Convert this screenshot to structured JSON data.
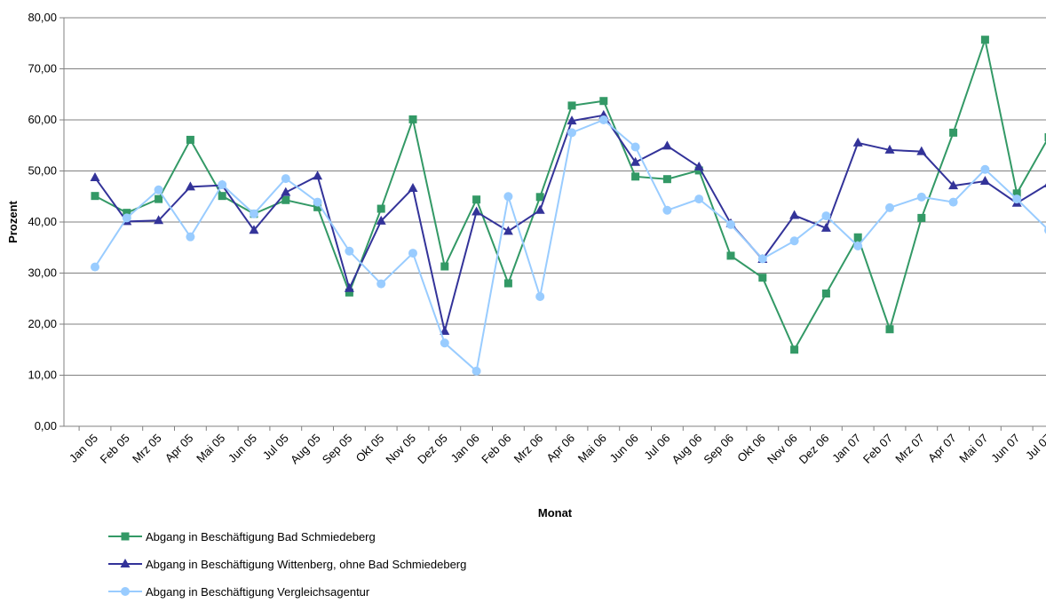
{
  "chart_data": {
    "type": "line",
    "x_label": "Monat",
    "y_label": "Prozent",
    "categories": [
      "Jan 05",
      "Feb 05",
      "Mrz 05",
      "Apr 05",
      "Mai 05",
      "Jun 05",
      "Jul 05",
      "Aug 05",
      "Sep 05",
      "Okt 05",
      "Nov 05",
      "Dez 05",
      "Jan 06",
      "Feb 06",
      "Mrz 06",
      "Apr 06",
      "Mai 06",
      "Jun 06",
      "Jul 06",
      "Aug 06",
      "Sep 06",
      "Okt 06",
      "Nov 06",
      "Dez 06",
      "Jan 07",
      "Feb 07",
      "Mrz 07",
      "Apr 07",
      "Mai 07",
      "Jun 07",
      "Jul 07"
    ],
    "series": [
      {
        "name": "Abgang in Beschäftigung Bad Schmiedeberg",
        "color": "#339966",
        "marker": "square",
        "values": [
          45.1,
          41.8,
          44.5,
          56.1,
          45.1,
          41.6,
          44.3,
          42.9,
          26.2,
          42.6,
          60.1,
          31.3,
          44.4,
          28.0,
          44.9,
          62.8,
          63.7,
          48.9,
          48.4,
          50.1,
          33.4,
          29.1,
          15.0,
          26.0,
          37.0,
          19.0,
          40.8,
          57.5,
          75.7,
          45.6,
          56.6
        ]
      },
      {
        "name": "Abgang in Beschäftigung Wittenberg, ohne Bad Schmiedeberg",
        "color": "#333399",
        "marker": "triangle",
        "values": [
          48.7,
          40.1,
          40.3,
          46.9,
          47.2,
          38.4,
          45.8,
          49.0,
          27.0,
          40.2,
          46.6,
          18.6,
          42.0,
          38.2,
          42.3,
          59.8,
          60.9,
          51.7,
          54.9,
          50.8,
          39.7,
          32.7,
          41.3,
          38.8,
          55.5,
          54.1,
          53.8,
          47.1,
          48.0,
          43.7,
          47.5
        ]
      },
      {
        "name": "Abgang in Beschäftigung Vergleichsagentur",
        "color": "#99ccff",
        "marker": "circle",
        "values": [
          31.2,
          40.8,
          46.3,
          37.1,
          47.3,
          41.6,
          48.5,
          43.9,
          34.3,
          27.9,
          33.9,
          16.3,
          10.8,
          45.0,
          25.4,
          57.5,
          60.0,
          54.7,
          42.3,
          44.5,
          39.5,
          32.8,
          36.3,
          41.2,
          35.3,
          42.8,
          44.9,
          43.9,
          50.3,
          44.5,
          38.4
        ]
      }
    ],
    "ylim": [
      0,
      80
    ],
    "yticks": [
      {
        "value": 0,
        "label": "0,00"
      },
      {
        "value": 10,
        "label": "10,00"
      },
      {
        "value": 20,
        "label": "20,00"
      },
      {
        "value": 30,
        "label": "30,00"
      },
      {
        "value": 40,
        "label": "40,00"
      },
      {
        "value": 50,
        "label": "50,00"
      },
      {
        "value": 60,
        "label": "60,00"
      },
      {
        "value": 70,
        "label": "70,00"
      },
      {
        "value": 80,
        "label": "80,00"
      }
    ],
    "grid": true
  }
}
